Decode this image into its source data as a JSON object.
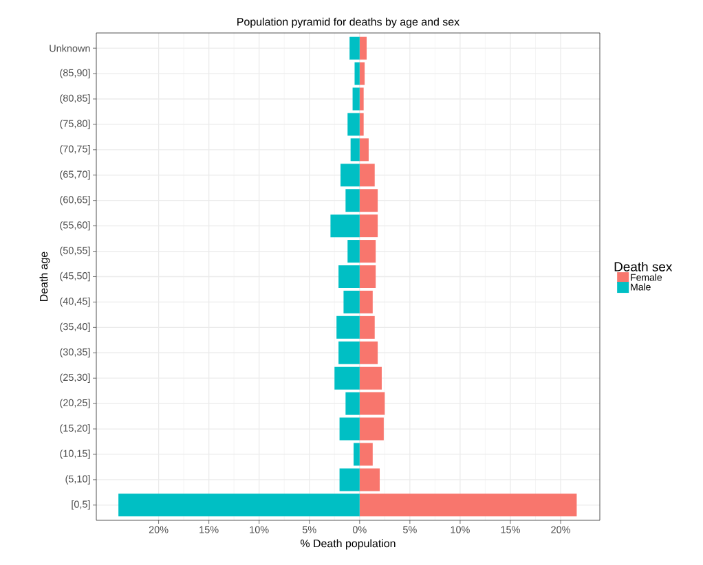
{
  "chart_data": {
    "type": "bar",
    "orientation": "horizontal",
    "stacked": true,
    "title": "Population pyramid for deaths by age and sex",
    "xlabel": "% Death population",
    "ylabel": "Death age",
    "legend_title": "Death sex",
    "legend": "right",
    "grid": true,
    "categories": [
      "Unknown",
      "(85,90]",
      "(80,85]",
      "(75,80]",
      "(70,75]",
      "(65,70]",
      "(60,65]",
      "(55,60]",
      "(50,55]",
      "(45,50]",
      "(40,45]",
      "(35,40]",
      "(30,35]",
      "(25,30]",
      "(20,25]",
      "(15,20]",
      "(10,15]",
      "(5,10]",
      "[0,5]"
    ],
    "series": [
      {
        "name": "Female",
        "color": "#f8766d",
        "values": [
          0.7,
          0.5,
          0.4,
          0.4,
          0.9,
          1.5,
          1.8,
          1.8,
          1.6,
          1.6,
          1.3,
          1.5,
          1.8,
          2.2,
          2.5,
          2.4,
          1.3,
          2.0,
          21.6
        ]
      },
      {
        "name": "Male",
        "color": "#00bfc4",
        "values": [
          -1.0,
          -0.5,
          -0.7,
          -1.2,
          -0.9,
          -1.9,
          -1.4,
          -2.9,
          -1.2,
          -2.1,
          -1.6,
          -2.3,
          -2.1,
          -2.5,
          -1.4,
          -2.0,
          -0.6,
          -2.0,
          -24.0
        ]
      }
    ],
    "xlim": [
      -26.2,
      23.9
    ],
    "xticks": [
      {
        "value": -20,
        "label": "20%"
      },
      {
        "value": -15,
        "label": "15%"
      },
      {
        "value": -10,
        "label": "10%"
      },
      {
        "value": -5,
        "label": "5%"
      },
      {
        "value": 0,
        "label": "0%"
      },
      {
        "value": 5,
        "label": "5%"
      },
      {
        "value": 10,
        "label": "10%"
      },
      {
        "value": 15,
        "label": "15%"
      },
      {
        "value": 20,
        "label": "20%"
      }
    ]
  }
}
